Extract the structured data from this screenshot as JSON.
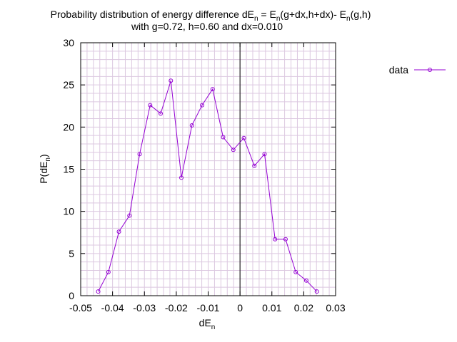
{
  "chart_data": {
    "type": "line",
    "title_line1_parts": {
      "a": "Probability distribution of energy difference dE",
      "a_sub": "n",
      "b": " = E",
      "b_sub": "n",
      "c": "(g+dx,h+dx)- E",
      "c_sub": "n",
      "d": "(g,h)"
    },
    "title_line2": "with g=0.72, h=0.60 and dx=0.010",
    "xlabel": {
      "main": "dE",
      "sub": "n"
    },
    "ylabel": {
      "main": "P(dE",
      "sub": "n",
      "end": ")"
    },
    "xlim": [
      -0.05,
      0.03
    ],
    "ylim": [
      0,
      30
    ],
    "x_ticks": [
      {
        "value": -0.05,
        "label": "-0.05"
      },
      {
        "value": -0.04,
        "label": "-0.04"
      },
      {
        "value": -0.03,
        "label": "-0.03"
      },
      {
        "value": -0.02,
        "label": "-0.02"
      },
      {
        "value": -0.01,
        "label": "-0.01"
      },
      {
        "value": 0,
        "label": "0"
      },
      {
        "value": 0.01,
        "label": "0.01"
      },
      {
        "value": 0.02,
        "label": "0.02"
      },
      {
        "value": 0.03,
        "label": "0.03"
      }
    ],
    "y_ticks": [
      {
        "value": 0,
        "label": "0"
      },
      {
        "value": 5,
        "label": "5"
      },
      {
        "value": 10,
        "label": "10"
      },
      {
        "value": 15,
        "label": "15"
      },
      {
        "value": 20,
        "label": "20"
      },
      {
        "value": 25,
        "label": "25"
      },
      {
        "value": 30,
        "label": "30"
      }
    ],
    "grid": true,
    "zero_line": true,
    "legend_position": "outside-top-right",
    "series": [
      {
        "name": "data",
        "color": "#9400d3",
        "x": [
          -0.0445,
          -0.0413,
          -0.038,
          -0.0347,
          -0.0315,
          -0.0282,
          -0.0249,
          -0.0217,
          -0.0184,
          -0.0151,
          -0.0119,
          -0.0086,
          -0.0053,
          -0.0021,
          0.0012,
          0.0045,
          0.0077,
          0.011,
          0.0143,
          0.0175,
          0.0208,
          0.0241
        ],
        "y": [
          0.5,
          2.8,
          7.6,
          9.5,
          16.8,
          22.6,
          21.6,
          25.5,
          14.0,
          20.2,
          22.6,
          24.5,
          18.8,
          17.3,
          18.7,
          15.4,
          16.8,
          6.7,
          6.7,
          2.8,
          1.8,
          0.5
        ]
      }
    ]
  }
}
